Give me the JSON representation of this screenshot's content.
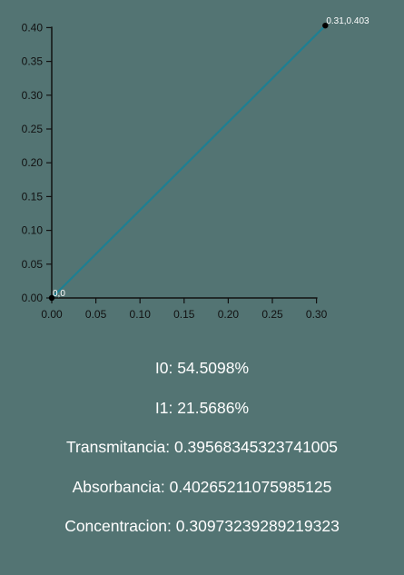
{
  "chart_data": {
    "type": "line",
    "title": "",
    "xlabel": "",
    "ylabel": "",
    "xlim": [
      0,
      0.31
    ],
    "ylim": [
      0,
      0.403
    ],
    "x_ticks": [
      "0.00",
      "0.05",
      "0.10",
      "0.15",
      "0.20",
      "0.25",
      "0.30"
    ],
    "y_ticks": [
      "0.00",
      "0.05",
      "0.10",
      "0.15",
      "0.20",
      "0.25",
      "0.30",
      "0.35",
      "0.40"
    ],
    "series": [
      {
        "color": "#1e7f92",
        "points": [
          {
            "x": 0,
            "y": 0,
            "label": "0,0"
          },
          {
            "x": 0.31,
            "y": 0.403,
            "label": "0.31,0.403"
          }
        ]
      }
    ],
    "grid": false,
    "axis_color": "#111111",
    "point_color": "#000000"
  },
  "results": [
    {
      "key": "i0",
      "text": "I0: 54.5098%"
    },
    {
      "key": "i1",
      "text": "I1: 21.5686%"
    },
    {
      "key": "transmitancia",
      "text": "Transmitancia: 0.39568345323741005"
    },
    {
      "key": "absorbancia",
      "text": "Absorbancia: 0.40265211075985125"
    },
    {
      "key": "concentracion",
      "text": "Concentracion: 0.30973239289219323"
    }
  ]
}
